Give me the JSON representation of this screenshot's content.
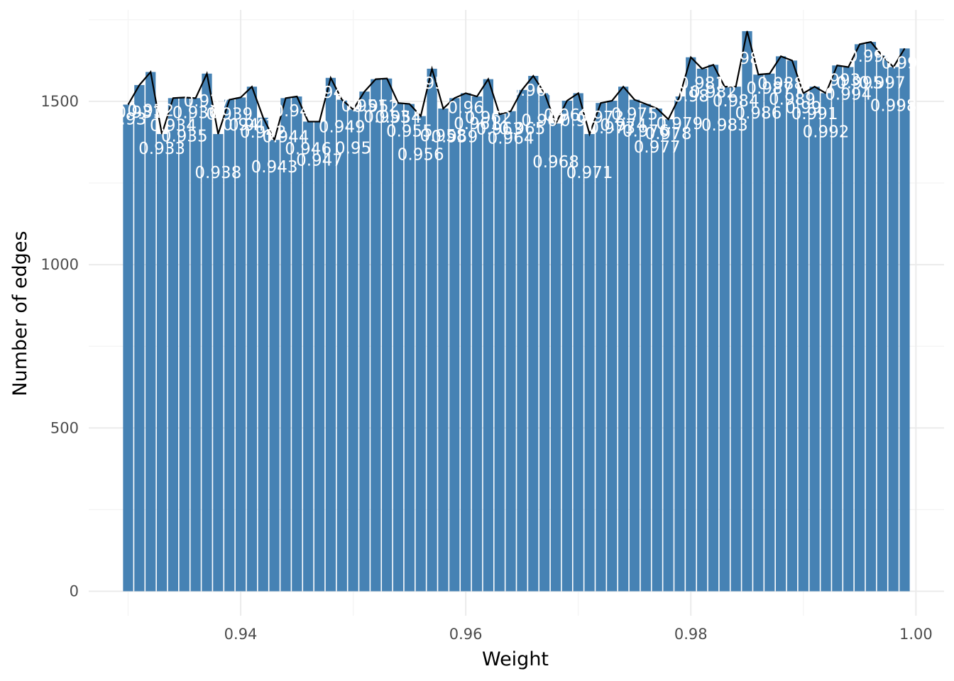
{
  "chart_data": {
    "type": "bar",
    "xlabel": "Weight",
    "ylabel": "Number of edges",
    "xlim": [
      0.9265,
      1.0025
    ],
    "ylim": [
      -75,
      1780
    ],
    "x_ticks": [
      0.94,
      0.96,
      0.98,
      1.0
    ],
    "x_tick_labels": [
      "0.94",
      "0.96",
      "0.98",
      "1.00"
    ],
    "y_ticks": [
      0,
      500,
      1000,
      1500
    ],
    "y_tick_labels": [
      "0",
      "500",
      "1000",
      "1500"
    ],
    "bin_width": 0.001,
    "bar_color": "#4682b4",
    "line_color": "#000000",
    "grid": true,
    "overlay": "line connecting bar tops",
    "x": [
      0.93,
      0.931,
      0.932,
      0.933,
      0.934,
      0.935,
      0.936,
      0.937,
      0.938,
      0.939,
      0.94,
      0.941,
      0.942,
      0.943,
      0.944,
      0.945,
      0.946,
      0.947,
      0.948,
      0.949,
      0.95,
      0.951,
      0.952,
      0.953,
      0.954,
      0.955,
      0.956,
      0.957,
      0.958,
      0.959,
      0.96,
      0.961,
      0.962,
      0.963,
      0.964,
      0.965,
      0.966,
      0.967,
      0.968,
      0.969,
      0.97,
      0.971,
      0.972,
      0.973,
      0.974,
      0.975,
      0.976,
      0.977,
      0.978,
      0.979,
      0.98,
      0.981,
      0.982,
      0.983,
      0.984,
      0.985,
      0.986,
      0.987,
      0.988,
      0.989,
      0.99,
      0.991,
      0.992,
      0.993,
      0.994,
      0.995,
      0.996,
      0.997,
      0.998,
      0.999
    ],
    "values": [
      1490,
      1550,
      1590,
      1400,
      1510,
      1512,
      1510,
      1585,
      1400,
      1505,
      1512,
      1545,
      1450,
      1382,
      1510,
      1515,
      1438,
      1438,
      1572,
      1505,
      1475,
      1530,
      1568,
      1570,
      1495,
      1492,
      1455,
      1600,
      1478,
      1510,
      1525,
      1515,
      1568,
      1460,
      1470,
      1535,
      1578,
      1525,
      1432,
      1502,
      1525,
      1400,
      1495,
      1502,
      1545,
      1505,
      1492,
      1478,
      1445,
      1515,
      1635,
      1600,
      1612,
      1545,
      1545,
      1715,
      1582,
      1585,
      1638,
      1625,
      1525,
      1545,
      1525,
      1610,
      1605,
      1675,
      1682,
      1640,
      1605,
      1662
    ],
    "labels": [
      "0.93",
      "0.931",
      "0.932",
      "0.933",
      "0.934",
      "0.935",
      "0.936",
      "0.937",
      "0.938",
      "0.939",
      "0.94",
      "0.941",
      "0.942",
      "0.943",
      "0.944",
      "0.945",
      "0.946",
      "0.947",
      "0.948",
      "0.949",
      "0.95",
      "0.951",
      "0.952",
      "0.953",
      "0.954",
      "0.955",
      "0.956",
      "0.957",
      "0.958",
      "0.959",
      "0.96",
      "0.961",
      "0.962",
      "0.963",
      "0.964",
      "0.965",
      "0.966",
      "0.967",
      "0.968",
      "0.969",
      "0.97",
      "0.971",
      "0.972",
      "0.973",
      "0.974",
      "0.975",
      "0.976",
      "0.977",
      "0.978",
      "0.979",
      "0.98",
      "0.981",
      "0.982",
      "0.983",
      "0.984",
      "0.985",
      "0.986",
      "0.987",
      "0.988",
      "0.989",
      "0.99",
      "0.991",
      "0.992",
      "0.993",
      "0.994",
      "0.995",
      "0.996",
      "0.997",
      "0.998",
      "0.999"
    ]
  }
}
